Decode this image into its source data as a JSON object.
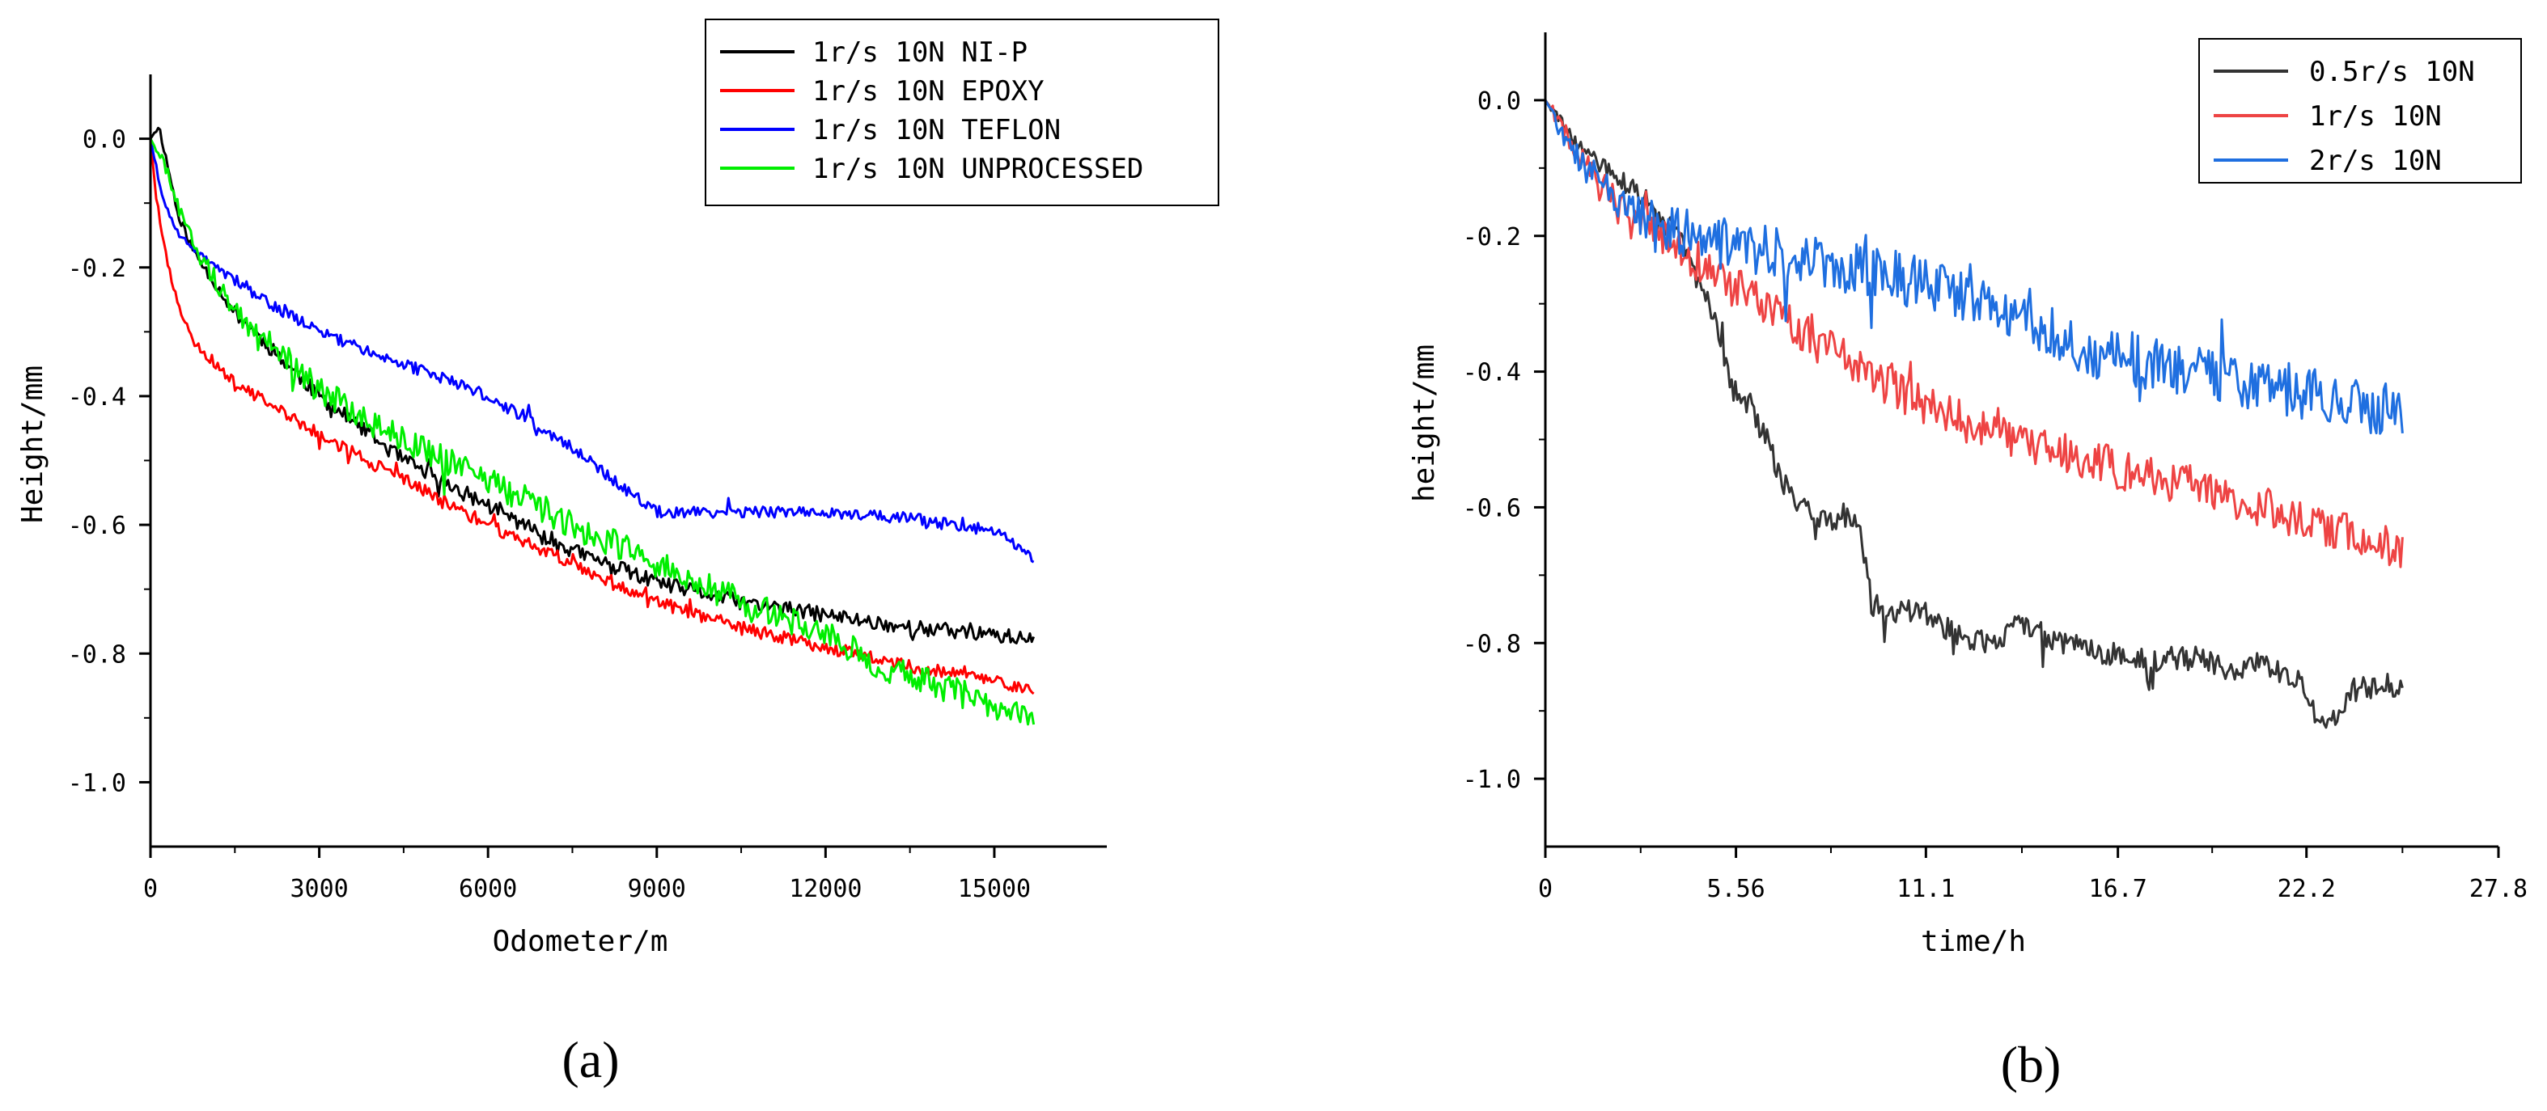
{
  "chart_data": [
    {
      "type": "line",
      "panel": "(a)",
      "title": "",
      "xlabel": "Odometer/m",
      "ylabel": "Height/mm",
      "xlim": [
        0,
        17000
      ],
      "ylim": [
        -1.1,
        0.1
      ],
      "x_ticks": [
        0,
        3000,
        6000,
        9000,
        12000,
        15000
      ],
      "x_tick_labels": [
        "0",
        "3000",
        "6000",
        "9000",
        "12000",
        "15000"
      ],
      "y_ticks": [
        -1.0,
        -0.8,
        -0.6,
        -0.4,
        -0.2,
        0.0
      ],
      "y_tick_labels": [
        "-1.0",
        "-0.8",
        "-0.6",
        "-0.4",
        "-0.2",
        "0.0"
      ],
      "legend_position": "top-right",
      "noise_seed": 11,
      "series": [
        {
          "name": "1r/s 10N NI-P",
          "color": "#000000",
          "noise": 0.012,
          "x": [
            0,
            150,
            300,
            500,
            800,
            1500,
            3000,
            4500,
            6000,
            7500,
            9000,
            10500,
            12000,
            13500,
            15000,
            15700
          ],
          "y": [
            0.0,
            0.02,
            -0.04,
            -0.12,
            -0.18,
            -0.27,
            -0.4,
            -0.5,
            -0.57,
            -0.64,
            -0.69,
            -0.72,
            -0.74,
            -0.76,
            -0.77,
            -0.78
          ]
        },
        {
          "name": "1r/s 10N EPOXY",
          "color": "#ff0000",
          "noise": 0.01,
          "x": [
            0,
            100,
            200,
            350,
            500,
            800,
            1500,
            3000,
            4500,
            6000,
            7500,
            9000,
            10500,
            12000,
            13500,
            15000,
            15700
          ],
          "y": [
            0.0,
            -0.09,
            -0.15,
            -0.21,
            -0.26,
            -0.32,
            -0.38,
            -0.46,
            -0.53,
            -0.6,
            -0.66,
            -0.72,
            -0.76,
            -0.79,
            -0.82,
            -0.84,
            -0.86
          ]
        },
        {
          "name": "1r/s 10N TEFLON",
          "color": "#0000ff",
          "noise": 0.009,
          "x": [
            0,
            200,
            500,
            1000,
            2000,
            3000,
            4500,
            6000,
            7500,
            8500,
            9000,
            10500,
            12000,
            13500,
            15000,
            15700
          ],
          "y": [
            0.0,
            -0.09,
            -0.15,
            -0.19,
            -0.25,
            -0.3,
            -0.35,
            -0.4,
            -0.48,
            -0.55,
            -0.58,
            -0.58,
            -0.58,
            -0.59,
            -0.61,
            -0.65
          ]
        },
        {
          "name": "1r/s 10N UNPROCESSED",
          "color": "#00ee00",
          "noise": 0.022,
          "x": [
            0,
            300,
            500,
            800,
            1500,
            3000,
            4500,
            6000,
            7500,
            9000,
            10500,
            12000,
            13000,
            14000,
            15000,
            15700
          ],
          "y": [
            0.0,
            -0.05,
            -0.11,
            -0.17,
            -0.27,
            -0.39,
            -0.47,
            -0.53,
            -0.6,
            -0.66,
            -0.72,
            -0.77,
            -0.82,
            -0.85,
            -0.88,
            -0.91
          ]
        }
      ]
    },
    {
      "type": "line",
      "panel": "(b)",
      "title": "",
      "xlabel": "time/h",
      "ylabel": "height/mm",
      "xlim": [
        0,
        27.8
      ],
      "ylim": [
        -1.1,
        0.1
      ],
      "x_ticks": [
        0,
        5.56,
        11.1,
        16.7,
        22.2,
        27.8
      ],
      "x_tick_labels": [
        "0",
        "5.56",
        "11.1",
        "16.7",
        "22.2",
        "27.8"
      ],
      "y_ticks": [
        -1.0,
        -0.8,
        -0.6,
        -0.4,
        -0.2,
        0.0
      ],
      "y_tick_labels": [
        "-1.0",
        "-0.8",
        "-0.6",
        "-0.4",
        "-0.2",
        "0.0"
      ],
      "legend_position": "top-right",
      "noise_seed": 29,
      "series": [
        {
          "name": "0.5r/s 10N",
          "color": "#333333",
          "noise": 0.018,
          "x": [
            0,
            1,
            2,
            3,
            4,
            5,
            5.5,
            6,
            7,
            8,
            8.8,
            9.2,
            9.5,
            10,
            11,
            12,
            13,
            14,
            15,
            16,
            17,
            18,
            19,
            20,
            21,
            22,
            22.7,
            23.5,
            24.5,
            25
          ],
          "y": [
            0.0,
            -0.07,
            -0.11,
            -0.15,
            -0.21,
            -0.33,
            -0.43,
            -0.45,
            -0.57,
            -0.62,
            -0.61,
            -0.63,
            -0.74,
            -0.76,
            -0.75,
            -0.79,
            -0.8,
            -0.77,
            -0.8,
            -0.81,
            -0.82,
            -0.83,
            -0.82,
            -0.84,
            -0.83,
            -0.86,
            -0.93,
            -0.87,
            -0.86,
            -0.87
          ]
        },
        {
          "name": "1r/s 10N",
          "color": "#ee4444",
          "noise": 0.03,
          "x": [
            0,
            1,
            2,
            3,
            4,
            5,
            6,
            7,
            8,
            9,
            10,
            11,
            12,
            13,
            14,
            15,
            16,
            17,
            18,
            19,
            20,
            21,
            22,
            23,
            24,
            25
          ],
          "y": [
            0.0,
            -0.08,
            -0.14,
            -0.18,
            -0.22,
            -0.26,
            -0.29,
            -0.32,
            -0.36,
            -0.39,
            -0.42,
            -0.45,
            -0.47,
            -0.49,
            -0.51,
            -0.52,
            -0.53,
            -0.55,
            -0.56,
            -0.57,
            -0.59,
            -0.6,
            -0.62,
            -0.63,
            -0.65,
            -0.66
          ]
        },
        {
          "name": "2r/s 10N",
          "color": "#1f6fe0",
          "noise": 0.04,
          "x": [
            0,
            1,
            2,
            3,
            4,
            5,
            6,
            7,
            8,
            9,
            10,
            11,
            12,
            13,
            14,
            15,
            16,
            17,
            18,
            19,
            20,
            21,
            22,
            23,
            24,
            25
          ],
          "y": [
            0.0,
            -0.09,
            -0.15,
            -0.18,
            -0.2,
            -0.21,
            -0.22,
            -0.23,
            -0.24,
            -0.25,
            -0.26,
            -0.27,
            -0.29,
            -0.31,
            -0.33,
            -0.35,
            -0.37,
            -0.38,
            -0.39,
            -0.4,
            -0.41,
            -0.42,
            -0.43,
            -0.44,
            -0.45,
            -0.46
          ]
        }
      ]
    }
  ]
}
